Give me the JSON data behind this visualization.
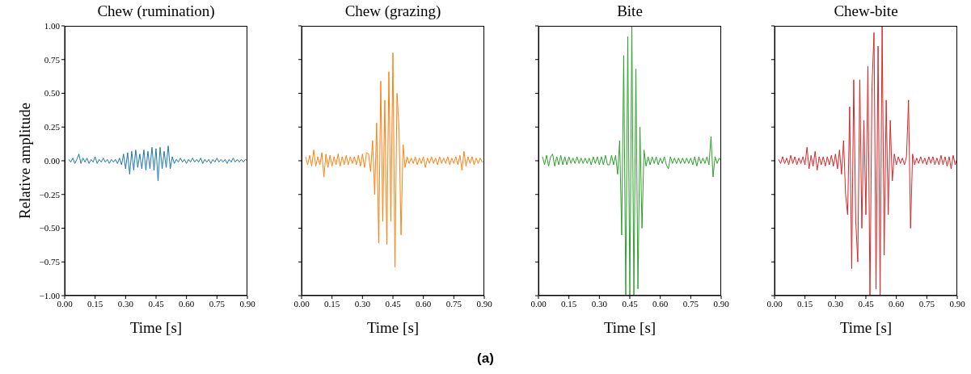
{
  "chart_data": [
    {
      "type": "line",
      "title": "Chew (rumination)",
      "xlabel": "Time [s]",
      "ylabel": "Relative amplitude",
      "annotations": [
        "(a)"
      ],
      "xlim": [
        0,
        0.9
      ],
      "ylim": [
        -1,
        1
      ],
      "xticks": [
        {
          "value": 0,
          "label": "0.00"
        },
        {
          "value": 0.15,
          "label": "0.15"
        },
        {
          "value": 0.3,
          "label": "0.30"
        },
        {
          "value": 0.45,
          "label": "0.45"
        },
        {
          "value": 0.6,
          "label": "0.60"
        },
        {
          "value": 0.75,
          "label": "0.75"
        },
        {
          "value": 0.9,
          "label": "0.90"
        }
      ],
      "yticks": [
        {
          "value": -1,
          "label": "−1.00"
        },
        {
          "value": -0.75,
          "label": "−0.75"
        },
        {
          "value": -0.5,
          "label": "−0.50"
        },
        {
          "value": -0.25,
          "label": "−0.25"
        },
        {
          "value": 0,
          "label": "0.00"
        },
        {
          "value": 0.25,
          "label": "0.25"
        },
        {
          "value": 0.5,
          "label": "0.50"
        },
        {
          "value": 0.75,
          "label": "0.75"
        },
        {
          "value": 1,
          "label": "1.00"
        }
      ],
      "x": [
        0.02,
        0.03,
        0.04,
        0.05,
        0.06,
        0.07,
        0.08,
        0.09,
        0.1,
        0.11,
        0.12,
        0.13,
        0.14,
        0.15,
        0.16,
        0.17,
        0.18,
        0.19,
        0.2,
        0.21,
        0.22,
        0.23,
        0.24,
        0.25,
        0.26,
        0.27,
        0.28,
        0.29,
        0.3,
        0.31,
        0.32,
        0.33,
        0.34,
        0.35,
        0.36,
        0.37,
        0.38,
        0.39,
        0.4,
        0.41,
        0.42,
        0.43,
        0.44,
        0.45,
        0.46,
        0.47,
        0.48,
        0.49,
        0.5,
        0.51,
        0.52,
        0.53,
        0.54,
        0.55,
        0.56,
        0.57,
        0.58,
        0.59,
        0.6,
        0.61,
        0.62,
        0.63,
        0.64,
        0.65,
        0.66,
        0.67,
        0.68,
        0.69,
        0.7,
        0.71,
        0.72,
        0.73,
        0.74,
        0.75,
        0.76,
        0.77,
        0.78,
        0.79,
        0.8,
        0.81,
        0.82,
        0.83,
        0.84,
        0.85,
        0.86,
        0.87,
        0.88,
        0.89,
        0.9
      ],
      "series": [
        {
          "color": "#1f77b4",
          "values": [
            0.01,
            -0.01,
            0.02,
            -0.02,
            0.01,
            0.05,
            -0.02,
            0.02,
            -0.01,
            0.02,
            -0.02,
            0.01,
            -0.01,
            0.03,
            -0.02,
            0.01,
            -0.01,
            0.02,
            -0.01,
            0.01,
            -0.02,
            0.01,
            -0.01,
            0.01,
            -0.02,
            0.02,
            -0.03,
            0.05,
            -0.06,
            0.06,
            -0.1,
            0.07,
            -0.07,
            0.08,
            -0.05,
            0.05,
            -0.06,
            0.08,
            -0.07,
            0.07,
            -0.06,
            0.1,
            -0.07,
            0.09,
            -0.15,
            0.1,
            -0.06,
            0.07,
            -0.05,
            0.11,
            -0.06,
            0.03,
            -0.02,
            0.01,
            -0.01,
            0.02,
            -0.01,
            0.01,
            -0.02,
            0.01,
            -0.01,
            0.02,
            -0.01,
            0.01,
            -0.01,
            0.02,
            -0.02,
            0.01,
            -0.01,
            0.01,
            -0.02,
            0.01,
            -0.01,
            0.02,
            -0.01,
            0.01,
            -0.01,
            0.01,
            -0.02,
            0.01,
            -0.01,
            0.02,
            -0.01,
            0.01,
            -0.01,
            0.01,
            -0.01,
            0.01,
            0.0
          ]
        }
      ]
    },
    {
      "type": "line",
      "title": "Chew (grazing)",
      "xlabel": "Time [s]",
      "tick_labels": "x",
      "xlim": [
        0,
        0.9
      ],
      "ylim": [
        -1,
        1
      ],
      "xticks": [
        {
          "value": 0,
          "label": "0.00"
        },
        {
          "value": 0.15,
          "label": "0.15"
        },
        {
          "value": 0.3,
          "label": "0.30"
        },
        {
          "value": 0.45,
          "label": "0.45"
        },
        {
          "value": 0.6,
          "label": "0.60"
        },
        {
          "value": 0.75,
          "label": "0.75"
        },
        {
          "value": 0.9,
          "label": "0.90"
        }
      ],
      "yticks": [
        {
          "value": -1,
          "label": null
        },
        {
          "value": -0.75,
          "label": null
        },
        {
          "value": -0.5,
          "label": null
        },
        {
          "value": -0.25,
          "label": null
        },
        {
          "value": 0,
          "label": null
        },
        {
          "value": 0.25,
          "label": null
        },
        {
          "value": 0.5,
          "label": null
        },
        {
          "value": 0.75,
          "label": null
        },
        {
          "value": 1,
          "label": null
        }
      ],
      "x": [
        0.02,
        0.03,
        0.04,
        0.05,
        0.06,
        0.07,
        0.08,
        0.09,
        0.1,
        0.11,
        0.12,
        0.13,
        0.14,
        0.15,
        0.16,
        0.17,
        0.18,
        0.19,
        0.2,
        0.21,
        0.22,
        0.23,
        0.24,
        0.25,
        0.26,
        0.27,
        0.28,
        0.29,
        0.3,
        0.31,
        0.32,
        0.33,
        0.34,
        0.35,
        0.36,
        0.37,
        0.38,
        0.39,
        0.4,
        0.41,
        0.42,
        0.43,
        0.44,
        0.45,
        0.46,
        0.47,
        0.48,
        0.49,
        0.5,
        0.51,
        0.52,
        0.53,
        0.54,
        0.55,
        0.56,
        0.57,
        0.58,
        0.59,
        0.6,
        0.61,
        0.62,
        0.63,
        0.64,
        0.65,
        0.66,
        0.67,
        0.68,
        0.69,
        0.7,
        0.71,
        0.72,
        0.73,
        0.74,
        0.75,
        0.76,
        0.77,
        0.78,
        0.79,
        0.8,
        0.81,
        0.82,
        0.83,
        0.84,
        0.85,
        0.86,
        0.87,
        0.88,
        0.89,
        0.9
      ],
      "series": [
        {
          "color": "#ff7f0e",
          "values": [
            0.03,
            -0.03,
            0.04,
            -0.04,
            0.08,
            -0.04,
            0.03,
            -0.03,
            0.06,
            -0.12,
            0.05,
            -0.05,
            0.04,
            -0.04,
            0.03,
            -0.03,
            0.05,
            -0.04,
            0.03,
            -0.03,
            0.04,
            -0.03,
            0.03,
            -0.02,
            0.03,
            -0.03,
            0.04,
            -0.04,
            0.05,
            -0.05,
            0.06,
            0.05,
            -0.08,
            0.15,
            -0.25,
            0.28,
            -0.61,
            0.59,
            -0.45,
            0.45,
            -0.62,
            0.66,
            -0.45,
            0.8,
            -0.79,
            0.5,
            0.25,
            -0.55,
            0.12,
            -0.05,
            0.03,
            -0.02,
            0.02,
            -0.02,
            0.03,
            -0.03,
            0.02,
            -0.02,
            0.03,
            -0.05,
            0.02,
            -0.02,
            0.03,
            -0.02,
            0.02,
            -0.03,
            0.03,
            -0.02,
            0.02,
            -0.02,
            0.03,
            -0.03,
            0.02,
            -0.02,
            0.03,
            -0.03,
            0.04,
            -0.07,
            0.07,
            -0.04,
            0.03,
            -0.02,
            0.03,
            -0.03,
            0.02,
            -0.02,
            0.02,
            -0.01,
            0.0
          ]
        }
      ]
    },
    {
      "type": "line",
      "title": "Bite",
      "xlabel": "Time [s]",
      "tick_labels": "x",
      "xlim": [
        0,
        0.9
      ],
      "ylim": [
        -1,
        1
      ],
      "xticks": [
        {
          "value": 0,
          "label": "0.00"
        },
        {
          "value": 0.15,
          "label": "0.15"
        },
        {
          "value": 0.3,
          "label": "0.30"
        },
        {
          "value": 0.45,
          "label": "0.45"
        },
        {
          "value": 0.6,
          "label": "0.60"
        },
        {
          "value": 0.75,
          "label": "0.75"
        },
        {
          "value": 0.9,
          "label": "0.90"
        }
      ],
      "yticks": [
        {
          "value": -1,
          "label": null
        },
        {
          "value": -0.75,
          "label": null
        },
        {
          "value": -0.5,
          "label": null
        },
        {
          "value": -0.25,
          "label": null
        },
        {
          "value": 0,
          "label": null
        },
        {
          "value": 0.25,
          "label": null
        },
        {
          "value": 0.5,
          "label": null
        },
        {
          "value": 0.75,
          "label": null
        },
        {
          "value": 1,
          "label": null
        }
      ],
      "x": [
        0.02,
        0.03,
        0.04,
        0.05,
        0.06,
        0.07,
        0.08,
        0.09,
        0.1,
        0.11,
        0.12,
        0.13,
        0.14,
        0.15,
        0.16,
        0.17,
        0.18,
        0.19,
        0.2,
        0.21,
        0.22,
        0.23,
        0.24,
        0.25,
        0.26,
        0.27,
        0.28,
        0.29,
        0.3,
        0.31,
        0.32,
        0.33,
        0.34,
        0.35,
        0.36,
        0.37,
        0.38,
        0.39,
        0.4,
        0.41,
        0.42,
        0.43,
        0.44,
        0.45,
        0.46,
        0.47,
        0.48,
        0.49,
        0.5,
        0.51,
        0.52,
        0.53,
        0.54,
        0.55,
        0.56,
        0.57,
        0.58,
        0.59,
        0.6,
        0.61,
        0.62,
        0.63,
        0.64,
        0.65,
        0.66,
        0.67,
        0.68,
        0.69,
        0.7,
        0.71,
        0.72,
        0.73,
        0.74,
        0.75,
        0.76,
        0.77,
        0.78,
        0.79,
        0.8,
        0.81,
        0.82,
        0.83,
        0.84,
        0.85,
        0.86,
        0.87,
        0.88,
        0.89,
        0.9
      ],
      "series": [
        {
          "color": "#2ca02c",
          "values": [
            0.03,
            -0.03,
            0.04,
            -0.04,
            0.03,
            0.05,
            -0.04,
            0.03,
            -0.03,
            0.04,
            -0.03,
            0.03,
            -0.03,
            0.03,
            -0.02,
            0.02,
            -0.02,
            0.03,
            -0.02,
            0.02,
            -0.02,
            0.02,
            -0.02,
            0.02,
            -0.03,
            0.03,
            -0.02,
            0.03,
            -0.03,
            0.03,
            -0.03,
            0.04,
            -0.03,
            -0.03,
            0.04,
            -0.03,
            0.04,
            -0.1,
            0.15,
            -0.55,
            0.78,
            -1.0,
            0.92,
            -1.0,
            1.0,
            -1.0,
            0.68,
            -0.95,
            0.25,
            -0.5,
            0.08,
            -0.04,
            0.03,
            -0.03,
            0.03,
            -0.02,
            0.03,
            -0.03,
            0.02,
            -0.02,
            0.03,
            -0.03,
            -0.06,
            0.03,
            -0.02,
            0.02,
            -0.02,
            0.02,
            -0.02,
            0.02,
            -0.02,
            0.02,
            -0.02,
            0.02,
            -0.03,
            0.03,
            -0.04,
            0.03,
            -0.02,
            0.02,
            -0.02,
            0.03,
            -0.03,
            0.18,
            -0.12,
            0.03,
            -0.02,
            0.02,
            0.0
          ]
        }
      ]
    },
    {
      "type": "line",
      "title": "Chew-bite",
      "xlabel": "Time [s]",
      "tick_labels": "x",
      "xlim": [
        0,
        0.9
      ],
      "ylim": [
        -1,
        1
      ],
      "xticks": [
        {
          "value": 0,
          "label": "0.00"
        },
        {
          "value": 0.15,
          "label": "0.15"
        },
        {
          "value": 0.3,
          "label": "0.30"
        },
        {
          "value": 0.45,
          "label": "0.45"
        },
        {
          "value": 0.6,
          "label": "0.60"
        },
        {
          "value": 0.75,
          "label": "0.75"
        },
        {
          "value": 0.9,
          "label": "0.90"
        }
      ],
      "yticks": [
        {
          "value": -1,
          "label": null
        },
        {
          "value": -0.75,
          "label": null
        },
        {
          "value": -0.5,
          "label": null
        },
        {
          "value": -0.25,
          "label": null
        },
        {
          "value": 0,
          "label": null
        },
        {
          "value": 0.25,
          "label": null
        },
        {
          "value": 0.5,
          "label": null
        },
        {
          "value": 0.75,
          "label": null
        },
        {
          "value": 1,
          "label": null
        }
      ],
      "x": [
        0.02,
        0.03,
        0.04,
        0.05,
        0.06,
        0.07,
        0.08,
        0.09,
        0.1,
        0.11,
        0.12,
        0.13,
        0.14,
        0.15,
        0.16,
        0.17,
        0.18,
        0.19,
        0.2,
        0.21,
        0.22,
        0.23,
        0.24,
        0.25,
        0.26,
        0.27,
        0.28,
        0.29,
        0.3,
        0.31,
        0.32,
        0.33,
        0.34,
        0.35,
        0.36,
        0.37,
        0.38,
        0.39,
        0.4,
        0.41,
        0.42,
        0.43,
        0.44,
        0.45,
        0.46,
        0.47,
        0.48,
        0.49,
        0.5,
        0.51,
        0.52,
        0.53,
        0.54,
        0.55,
        0.56,
        0.57,
        0.58,
        0.59,
        0.6,
        0.61,
        0.62,
        0.63,
        0.64,
        0.65,
        0.66,
        0.67,
        0.68,
        0.69,
        0.7,
        0.71,
        0.72,
        0.73,
        0.74,
        0.75,
        0.76,
        0.77,
        0.78,
        0.79,
        0.8,
        0.81,
        0.82,
        0.83,
        0.84,
        0.85,
        0.86,
        0.87,
        0.88,
        0.89,
        0.9
      ],
      "series": [
        {
          "color": "#d62728",
          "values": [
            0.01,
            -0.02,
            0.03,
            -0.02,
            0.02,
            -0.03,
            0.04,
            -0.02,
            0.03,
            -0.03,
            0.02,
            -0.02,
            0.03,
            -0.03,
            0.1,
            -0.06,
            0.04,
            -0.04,
            0.07,
            -0.07,
            0.03,
            -0.03,
            0.03,
            -0.04,
            0.03,
            -0.03,
            0.04,
            -0.04,
            0.05,
            -0.06,
            0.08,
            -0.1,
            0.15,
            -0.25,
            -0.4,
            0.4,
            -0.8,
            0.6,
            -0.45,
            -0.75,
            0.6,
            -0.5,
            0.3,
            -0.4,
            0.7,
            -1.0,
            0.55,
            0.95,
            -0.95,
            0.85,
            -1.0,
            1.0,
            -0.7,
            0.45,
            -0.4,
            0.3,
            -0.15,
            0.05,
            -0.03,
            0.03,
            -0.02,
            0.02,
            -0.03,
            0.03,
            0.45,
            -0.5,
            0.05,
            -0.03,
            0.02,
            -0.02,
            0.03,
            -0.02,
            0.02,
            -0.03,
            0.03,
            -0.02,
            0.03,
            -0.03,
            0.02,
            -0.03,
            0.04,
            -0.03,
            0.03,
            -0.04,
            0.03,
            -0.06,
            0.04,
            -0.03,
            0.02
          ]
        }
      ]
    }
  ]
}
